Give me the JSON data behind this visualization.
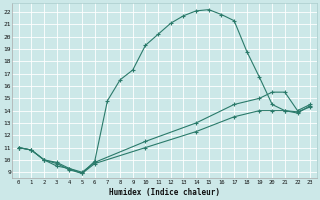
{
  "title": "",
  "xlabel": "Humidex (Indice chaleur)",
  "ylabel": "",
  "bg_color": "#cce8e8",
  "line_color": "#2a7a6a",
  "grid_color": "#b0d8d8",
  "xlim": [
    -0.5,
    23.5
  ],
  "ylim": [
    8.5,
    22.7
  ],
  "xticks": [
    0,
    1,
    2,
    3,
    4,
    5,
    6,
    7,
    8,
    9,
    10,
    11,
    12,
    13,
    14,
    15,
    16,
    17,
    18,
    19,
    20,
    21,
    22,
    23
  ],
  "yticks": [
    9,
    10,
    11,
    12,
    13,
    14,
    15,
    16,
    17,
    18,
    19,
    20,
    21,
    22
  ],
  "curve1_x": [
    0,
    1,
    2,
    3,
    4,
    5,
    6,
    7,
    8,
    9,
    10,
    11,
    12,
    13,
    14,
    15,
    16,
    17,
    18,
    19,
    20,
    21,
    22,
    23
  ],
  "curve1_y": [
    11.0,
    10.8,
    10.0,
    9.5,
    9.3,
    8.9,
    9.9,
    14.8,
    16.5,
    17.3,
    19.3,
    20.2,
    21.1,
    21.7,
    22.1,
    22.2,
    21.8,
    21.3,
    18.8,
    16.7,
    14.5,
    14.0,
    13.9,
    14.3
  ],
  "curve2_x": [
    0,
    1,
    2,
    3,
    4,
    5,
    6,
    10,
    14,
    17,
    19,
    20,
    21,
    22,
    23
  ],
  "curve2_y": [
    11.0,
    10.8,
    10.0,
    9.8,
    9.3,
    9.0,
    9.8,
    11.5,
    13.0,
    14.5,
    15.0,
    15.5,
    15.5,
    14.0,
    14.5
  ],
  "curve3_x": [
    0,
    1,
    2,
    3,
    4,
    5,
    6,
    10,
    14,
    17,
    19,
    20,
    21,
    22,
    23
  ],
  "curve3_y": [
    11.0,
    10.8,
    10.0,
    9.7,
    9.2,
    8.9,
    9.7,
    11.0,
    12.3,
    13.5,
    14.0,
    14.0,
    14.0,
    13.8,
    14.4
  ]
}
